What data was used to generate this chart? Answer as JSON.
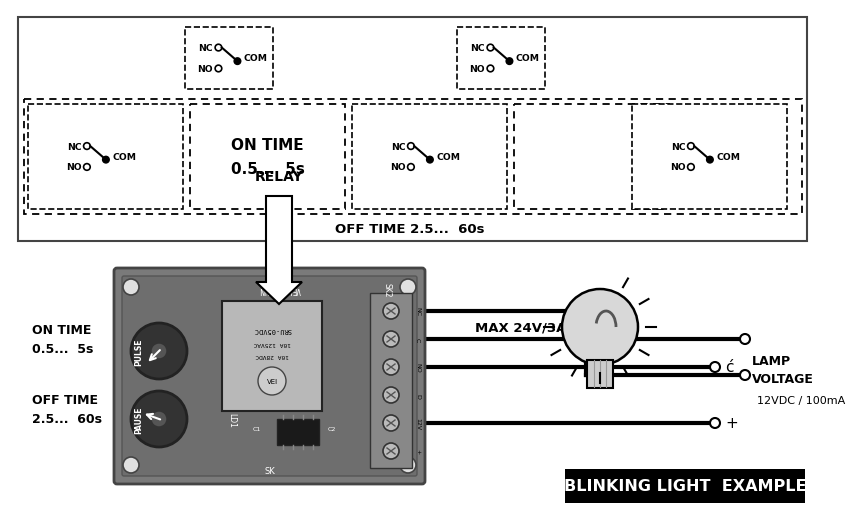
{
  "bg_color": "#ffffff",
  "title_bottom": "BLINKING LIGHT  EXAMPLE",
  "relay_label": "RELAY",
  "on_time_label": "ON TIME\n0.5...  5s",
  "off_time_label": "OFF TIME\n2.5...  60s",
  "max_label": "MAX 24V/3A",
  "lamp_label": "LAMP\nVOLTAGE",
  "vdc_label": "12VDC / 100mA",
  "on_time_box_label": "ON TIME\n0.5...  5s",
  "off_time_box_label": "OFF TIME 2.5...  60s"
}
